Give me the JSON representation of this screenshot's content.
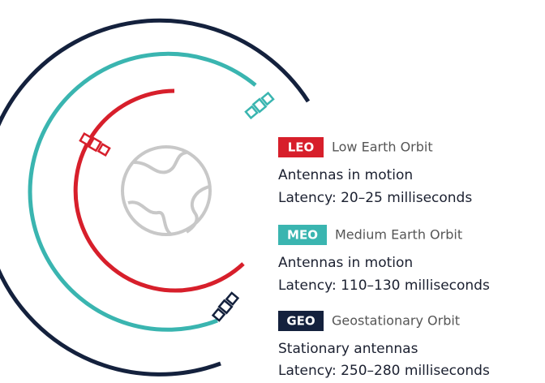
{
  "orbits": [
    {
      "abbr": "LEO",
      "name": "Low Earth Orbit",
      "description": "Antennas in motion",
      "latency": "Latency: 20–25 milliseconds"
    },
    {
      "abbr": "MEO",
      "name": "Medium Earth Orbit",
      "description": "Antennas in motion",
      "latency": "Latency: 110–130 milliseconds"
    },
    {
      "abbr": "GEO",
      "name": "Geostationary Orbit",
      "description": "Stationary antennas",
      "latency": "Latency: 250–280 milliseconds"
    }
  ]
}
